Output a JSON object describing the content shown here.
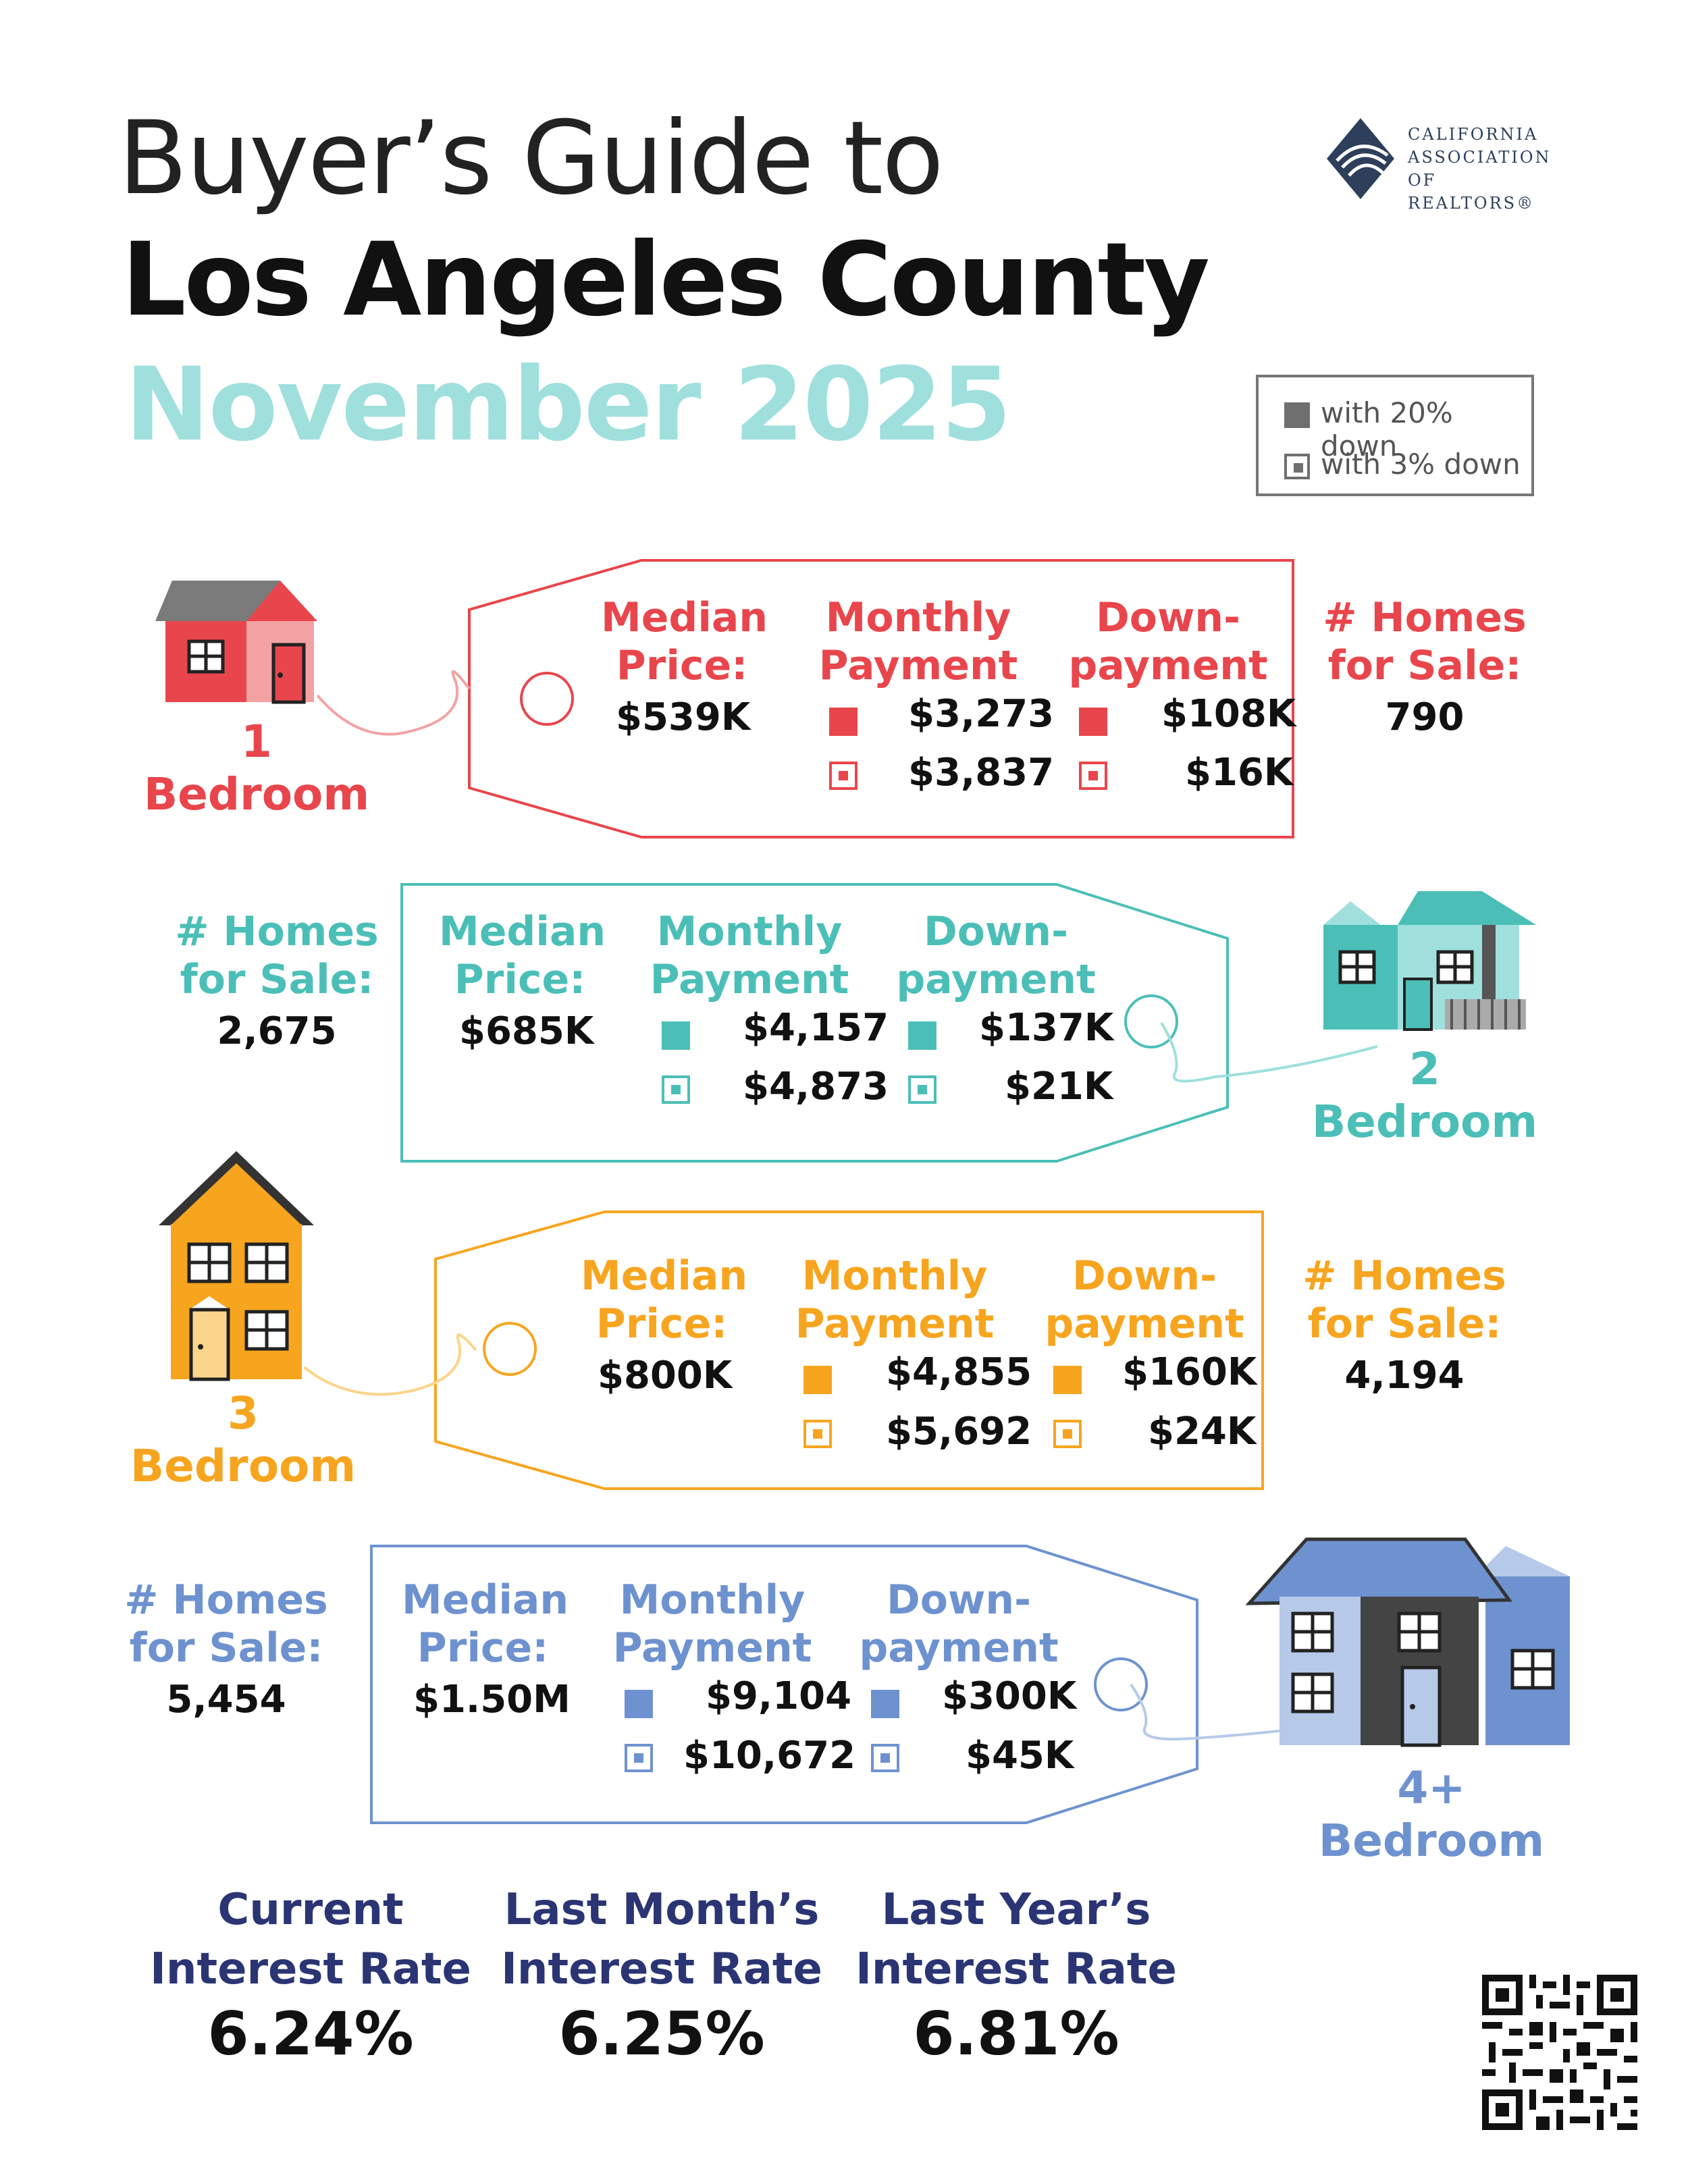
{
  "header": {
    "line1": "Buyer’s Guide to",
    "line2": "Los Angeles County",
    "line3": "November 2025"
  },
  "logo": {
    "l1": "CALIFORNIA",
    "l2": "ASSOCIATION",
    "l3": "OF REALTORS®"
  },
  "legend": {
    "twenty": "with 20% down",
    "three": "with 3% down"
  },
  "labels": {
    "median": [
      "Median",
      "Price:"
    ],
    "monthly": [
      "Monthly",
      "Payment"
    ],
    "down": [
      "Down-",
      "payment"
    ],
    "homes": [
      "# Homes",
      "for Sale:"
    ]
  },
  "colors": {
    "one": "#e8464c",
    "two": "#4bbfb7",
    "three": "#f7a51f",
    "four": "#6e92cf",
    "navy": "#2b3574"
  },
  "tiers": [
    {
      "num": "1",
      "word": "Bedroom",
      "median": "$539K",
      "pay20": "$3,273",
      "pay3": "$3,837",
      "down20": "$108K",
      "down3": "$16K",
      "homes": "790"
    },
    {
      "num": "2",
      "word": "Bedroom",
      "median": "$685K",
      "pay20": "$4,157",
      "pay3": "$4,873",
      "down20": "$137K",
      "down3": "$21K",
      "homes": "2,675"
    },
    {
      "num": "3",
      "word": "Bedroom",
      "median": "$800K",
      "pay20": "$4,855",
      "pay3": "$5,692",
      "down20": "$160K",
      "down3": "$24K",
      "homes": "4,194"
    },
    {
      "num": "4+",
      "word": "Bedroom",
      "median": "$1.50M",
      "pay20": "$9,104",
      "pay3": "$10,672",
      "down20": "$300K",
      "down3": "$45K",
      "homes": "5,454"
    }
  ],
  "rates": [
    {
      "l1": "Current",
      "l2": "Interest Rate",
      "value": "6.24%"
    },
    {
      "l1": "Last Month’s",
      "l2": "Interest Rate",
      "value": "6.25%"
    },
    {
      "l1": "Last Year’s",
      "l2": "Interest Rate",
      "value": "6.81%"
    }
  ]
}
